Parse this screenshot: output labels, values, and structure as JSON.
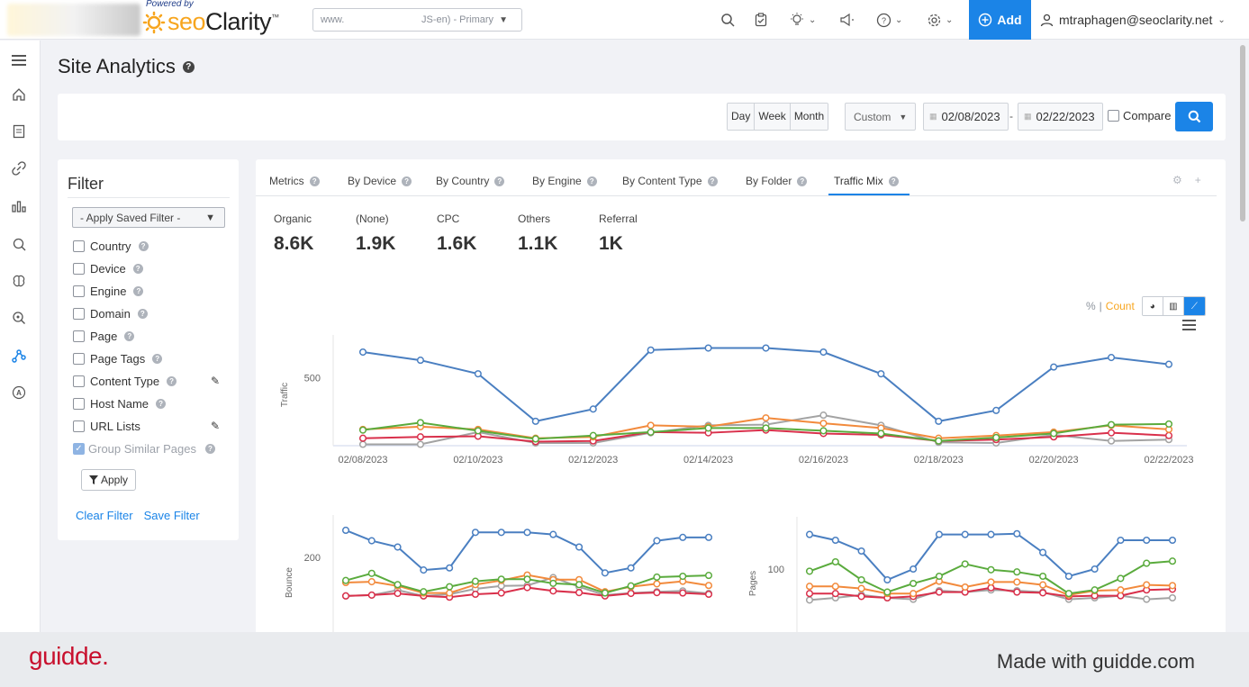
{
  "header": {
    "powered_by": "Powered by",
    "logo_seo": "seo",
    "logo_clarity": "Clarity",
    "logo_tm": "™",
    "domain_left": "www.",
    "domain_right": "JS-en) - Primary",
    "add_label": "Add",
    "user_email": "mtraphagen@seoclarity.net",
    "icons": [
      "search-icon",
      "clipboard-icon",
      "lightbulb-icon",
      "megaphone-icon",
      "help-icon",
      "gear-icon"
    ]
  },
  "page": {
    "title": "Site Analytics"
  },
  "date_bar": {
    "granularity": [
      "Day",
      "Week",
      "Month"
    ],
    "range_type": "Custom",
    "start_date": "02/08/2023",
    "end_date": "02/22/2023",
    "separator": "-",
    "compare_label": "Compare"
  },
  "filter": {
    "title": "Filter",
    "saved_filter": "- Apply Saved Filter -",
    "items": [
      {
        "label": "Country"
      },
      {
        "label": "Device"
      },
      {
        "label": "Engine"
      },
      {
        "label": "Domain"
      },
      {
        "label": "Page"
      },
      {
        "label": "Page Tags"
      },
      {
        "label": "Content Type"
      },
      {
        "label": "Host Name"
      },
      {
        "label": "URL Lists"
      },
      {
        "label": "Group Similar Pages"
      }
    ],
    "apply_label": "Apply",
    "clear_label": "Clear Filter",
    "save_label": "Save Filter"
  },
  "tabs": [
    "Metrics",
    "By Device",
    "By Country",
    "By Engine",
    "By Content Type",
    "By Folder",
    "Traffic Mix"
  ],
  "active_tab": "Traffic Mix",
  "metrics": [
    {
      "label": "Organic",
      "value": "8.6K"
    },
    {
      "label": "(None)",
      "value": "1.9K"
    },
    {
      "label": "CPC",
      "value": "1.6K"
    },
    {
      "label": "Others",
      "value": "1.1K"
    },
    {
      "label": "Referral",
      "value": "1K"
    }
  ],
  "chart_toggle": {
    "pct": "%",
    "sep": "|",
    "count": "Count"
  },
  "colors": {
    "organic": "#4a7fc1",
    "none": "#f28a3c",
    "cpc": "#5aab3d",
    "others": "#a3a3a3",
    "referral": "#d9304b",
    "accent": "#1b84e7"
  },
  "chart_data": [
    {
      "type": "line",
      "ylabel": "Traffic",
      "x": [
        "02/08/2023",
        "02/09/2023",
        "02/10/2023",
        "02/11/2023",
        "02/12/2023",
        "02/13/2023",
        "02/14/2023",
        "02/15/2023",
        "02/16/2023",
        "02/17/2023",
        "02/18/2023",
        "02/19/2023",
        "02/20/2023",
        "02/21/2023",
        "02/22/2023"
      ],
      "xticks": [
        "02/08/2023",
        "02/10/2023",
        "02/12/2023",
        "02/14/2023",
        "02/16/2023",
        "02/18/2023",
        "02/20/2023",
        "02/22/2023"
      ],
      "yticks": [
        500
      ],
      "ylim": [
        0,
        750
      ],
      "series": [
        {
          "key": "organic",
          "values": [
            690,
            630,
            530,
            180,
            270,
            705,
            720,
            720,
            690,
            530,
            180,
            260,
            580,
            650,
            600
          ]
        },
        {
          "key": "none",
          "values": [
            120,
            140,
            120,
            55,
            65,
            150,
            140,
            205,
            165,
            130,
            55,
            75,
            100,
            150,
            120
          ]
        },
        {
          "key": "cpc",
          "values": [
            115,
            170,
            110,
            50,
            75,
            100,
            130,
            130,
            110,
            90,
            35,
            60,
            90,
            155,
            160
          ]
        },
        {
          "key": "others",
          "values": [
            10,
            10,
            100,
            20,
            20,
            95,
            150,
            155,
            225,
            150,
            25,
            20,
            80,
            35,
            45
          ]
        },
        {
          "key": "referral",
          "values": [
            55,
            65,
            70,
            30,
            35,
            100,
            95,
            115,
            90,
            80,
            35,
            45,
            65,
            95,
            75
          ]
        }
      ]
    },
    {
      "type": "line",
      "ylabel": "Bounce",
      "yticks": [
        200
      ],
      "ylim": [
        0,
        280
      ],
      "series": [
        {
          "key": "organic",
          "values": [
            265,
            240,
            225,
            170,
            175,
            260,
            260,
            260,
            255,
            225,
            163,
            175,
            240,
            248,
            248
          ]
        },
        {
          "key": "none",
          "values": [
            140,
            142,
            132,
            115,
            115,
            135,
            145,
            158,
            147,
            147,
            118,
            130,
            137,
            143,
            133
          ]
        },
        {
          "key": "cpc",
          "values": [
            145,
            162,
            135,
            118,
            130,
            143,
            148,
            148,
            138,
            135,
            115,
            132,
            153,
            155,
            157
          ]
        },
        {
          "key": "others",
          "values": [
            108,
            110,
            122,
            108,
            112,
            125,
            132,
            133,
            152,
            130,
            110,
            115,
            118,
            120,
            114
          ]
        },
        {
          "key": "referral",
          "values": [
            108,
            110,
            114,
            108,
            105,
            112,
            115,
            128,
            120,
            116,
            108,
            114,
            116,
            115,
            112
          ]
        }
      ]
    },
    {
      "type": "line",
      "ylabel": "Pages",
      "yticks": [
        100
      ],
      "ylim": [
        0,
        160
      ],
      "series": [
        {
          "key": "organic",
          "values": [
            148,
            140,
            125,
            85,
            100,
            148,
            148,
            148,
            149,
            123,
            90,
            100,
            140,
            140,
            140
          ]
        },
        {
          "key": "none",
          "values": [
            76,
            76,
            73,
            66,
            66,
            83,
            75,
            82,
            82,
            78,
            64,
            70,
            71,
            78,
            77
          ]
        },
        {
          "key": "cpc",
          "values": [
            97,
            110,
            85,
            68,
            80,
            90,
            107,
            99,
            96,
            90,
            66,
            71,
            87,
            108,
            111
          ]
        },
        {
          "key": "others",
          "values": [
            57,
            60,
            64,
            60,
            58,
            70,
            68,
            71,
            70,
            68,
            58,
            60,
            63,
            58,
            60
          ]
        },
        {
          "key": "referral",
          "values": [
            66,
            66,
            62,
            60,
            62,
            68,
            68,
            74,
            68,
            67,
            62,
            63,
            63,
            71,
            72
          ]
        }
      ]
    }
  ],
  "footer": {
    "brand": "guidde.",
    "credit": "Made with guidde.com"
  }
}
